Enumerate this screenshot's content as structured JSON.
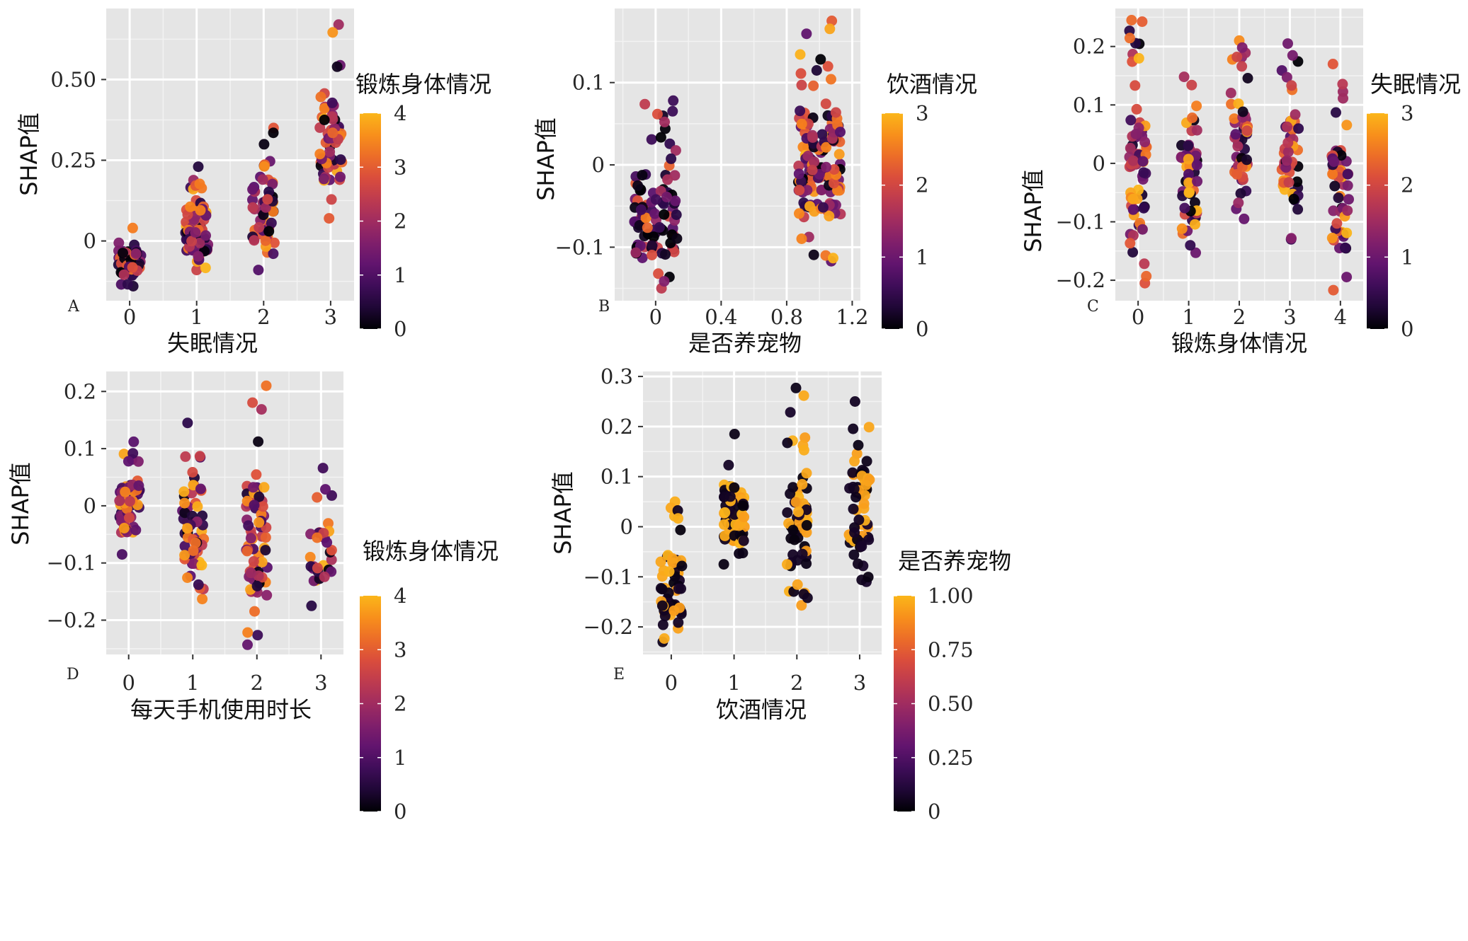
{
  "figure": {
    "colormap": [
      "#000004",
      "#2c0a4b",
      "#5c126e",
      "#89226a",
      "#b63655",
      "#de5039",
      "#f6801c",
      "#fbb61a",
      "#fcffa4"
    ],
    "colormap_note": ""
  },
  "chart_data": [
    {
      "type": "scatter",
      "panel": "A",
      "xlabel": "失眠情况",
      "ylabel": "SHAP值",
      "legend_title": "锻炼身体情况",
      "color_range": [
        0,
        4
      ],
      "color_ticks": [
        "0",
        "1",
        "2",
        "3",
        "4"
      ],
      "xlim": [
        -0.35,
        3.35
      ],
      "ylim": [
        -0.185,
        0.72
      ],
      "x_ticks": [
        0,
        1,
        2,
        3
      ],
      "x_tick_labels": [
        "0",
        "1",
        "2",
        "3"
      ],
      "y_ticks": [
        0,
        0.25,
        0.5
      ],
      "y_tick_labels": [
        "0",
        "0.25",
        "0.50"
      ],
      "clusters": [
        {
          "x": 0,
          "y_min": -0.14,
          "y_max": 0.04,
          "n": 70,
          "color_bias": "low"
        },
        {
          "x": 1,
          "y_min": -0.09,
          "y_max": 0.23,
          "n": 75,
          "color_bias": "mixed"
        },
        {
          "x": 2,
          "y_min": -0.09,
          "y_max": 0.35,
          "n": 55,
          "color_bias": "mixed"
        },
        {
          "x": 3,
          "y_min": 0.07,
          "y_max": 0.67,
          "n": 60,
          "color_bias": "mixed"
        }
      ]
    },
    {
      "type": "scatter",
      "panel": "B",
      "xlabel": "是否养宠物",
      "ylabel": "SHAP值",
      "legend_title": "饮酒情况",
      "color_range": [
        0,
        3
      ],
      "color_ticks": [
        "0",
        "1",
        "2",
        "3"
      ],
      "xlim": [
        -0.25,
        1.25
      ],
      "ylim": [
        -0.165,
        0.19
      ],
      "x_ticks": [
        0,
        0.4,
        0.8,
        1.2
      ],
      "x_tick_labels": [
        "0",
        "0.4",
        "0.8",
        "1.2"
      ],
      "y_ticks": [
        -0.1,
        0,
        0.1
      ],
      "y_tick_labels": [
        "−0.1",
        "0",
        "0.1"
      ],
      "clusters": [
        {
          "x": 0,
          "y_min": -0.15,
          "y_max": 0.078,
          "n": 95,
          "color_bias": "low"
        },
        {
          "x": 1,
          "y_min": -0.117,
          "y_max": 0.175,
          "n": 140,
          "color_bias": "mixed"
        }
      ]
    },
    {
      "type": "scatter",
      "panel": "C",
      "xlabel": "锻炼身体情况",
      "ylabel": "SHAP值",
      "legend_title": "失眠情况",
      "color_range": [
        0,
        3
      ],
      "color_ticks": [
        "0",
        "1",
        "2",
        "3"
      ],
      "xlim": [
        -0.45,
        4.45
      ],
      "ylim": [
        -0.235,
        0.265
      ],
      "x_ticks": [
        0,
        1,
        2,
        3,
        4
      ],
      "x_tick_labels": [
        "0",
        "1",
        "2",
        "3",
        "4"
      ],
      "y_ticks": [
        -0.2,
        -0.1,
        0,
        0.1,
        0.2
      ],
      "y_tick_labels": [
        "−0.2",
        "−0.1",
        "0",
        "0.1",
        "0.2"
      ],
      "clusters": [
        {
          "x": 0,
          "y_min": -0.205,
          "y_max": 0.245,
          "n": 70,
          "color_bias": "mixed"
        },
        {
          "x": 1,
          "y_min": -0.153,
          "y_max": 0.148,
          "n": 55,
          "color_bias": "mixed"
        },
        {
          "x": 2,
          "y_min": -0.095,
          "y_max": 0.21,
          "n": 55,
          "color_bias": "mixed"
        },
        {
          "x": 3,
          "y_min": -0.13,
          "y_max": 0.205,
          "n": 50,
          "color_bias": "mixed"
        },
        {
          "x": 4,
          "y_min": -0.217,
          "y_max": 0.17,
          "n": 55,
          "color_bias": "mixed"
        }
      ]
    },
    {
      "type": "scatter",
      "panel": "D",
      "xlabel": "每天手机使用时长",
      "ylabel": "SHAP值",
      "legend_title": "锻炼身体情况",
      "color_range": [
        0,
        4
      ],
      "color_ticks": [
        "0",
        "1",
        "2",
        "3",
        "4"
      ],
      "xlim": [
        -0.35,
        3.35
      ],
      "ylim": [
        -0.26,
        0.235
      ],
      "x_ticks": [
        0,
        1,
        2,
        3
      ],
      "x_tick_labels": [
        "0",
        "1",
        "2",
        "3"
      ],
      "y_ticks": [
        -0.2,
        -0.1,
        0,
        0.1,
        0.2
      ],
      "y_tick_labels": [
        "−0.2",
        "−0.1",
        "0",
        "0.1",
        "0.2"
      ],
      "clusters": [
        {
          "x": 0,
          "y_min": -0.085,
          "y_max": 0.112,
          "n": 65,
          "color_bias": "mixed"
        },
        {
          "x": 1,
          "y_min": -0.163,
          "y_max": 0.145,
          "n": 65,
          "color_bias": "mixed"
        },
        {
          "x": 2,
          "y_min": -0.243,
          "y_max": 0.21,
          "n": 70,
          "color_bias": "mixed"
        },
        {
          "x": 3,
          "y_min": -0.175,
          "y_max": 0.066,
          "n": 30,
          "color_bias": "mixed"
        }
      ]
    },
    {
      "type": "scatter",
      "panel": "E",
      "xlabel": "饮酒情况",
      "ylabel": "SHAP值",
      "legend_title": "是否养宠物",
      "color_range": [
        0,
        1
      ],
      "color_ticks": [
        "0",
        "0.25",
        "0.50",
        "0.75",
        "1.00"
      ],
      "xlim": [
        -0.45,
        3.35
      ],
      "ylim": [
        -0.255,
        0.31
      ],
      "x_ticks": [
        0,
        1,
        2,
        3
      ],
      "x_tick_labels": [
        "0",
        "1",
        "2",
        "3"
      ],
      "y_ticks": [
        -0.2,
        -0.1,
        0,
        0.1,
        0.2,
        0.3
      ],
      "y_tick_labels": [
        "−0.2",
        "−0.1",
        "0",
        "0.1",
        "0.2",
        "0.3"
      ],
      "clusters": [
        {
          "x": 0,
          "y_min": -0.23,
          "y_max": 0.05,
          "n": 60,
          "color_bias": "binary"
        },
        {
          "x": 1,
          "y_min": -0.075,
          "y_max": 0.185,
          "n": 80,
          "color_bias": "binary"
        },
        {
          "x": 2,
          "y_min": -0.157,
          "y_max": 0.277,
          "n": 60,
          "color_bias": "binary"
        },
        {
          "x": 3,
          "y_min": -0.11,
          "y_max": 0.25,
          "n": 60,
          "color_bias": "binary"
        }
      ]
    }
  ]
}
